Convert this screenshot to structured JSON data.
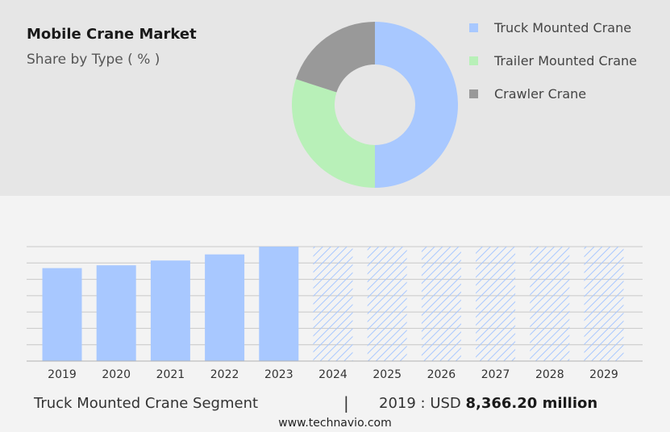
{
  "header": {
    "title": "Mobile Crane Market",
    "subtitle": "Share by Type ( % )"
  },
  "colors": {
    "truck": "#a8c8ff",
    "trailer": "#b8f0b8",
    "crawler": "#999999",
    "hatch": "#a8c8ff"
  },
  "chart_data": [
    {
      "type": "pie",
      "variant": "donut",
      "slices": [
        {
          "label": "Truck Mounted Crane",
          "value": 50
        },
        {
          "label": "Trailer Mounted Crane",
          "value": 30
        },
        {
          "label": "Crawler Crane",
          "value": 20
        }
      ],
      "legend_position": "right"
    },
    {
      "type": "bar",
      "categories": [
        "2019",
        "2020",
        "2021",
        "2022",
        "2023",
        "2024",
        "2025",
        "2026",
        "2027",
        "2028",
        "2029"
      ],
      "values": [
        8366.2,
        8620,
        9050,
        9600,
        10300,
        10300,
        10300,
        10300,
        10300,
        10300,
        10300
      ],
      "forecast_from": "2024",
      "ylim": [
        0,
        10300
      ],
      "grid": true
    }
  ],
  "footer": {
    "segment": "Truck Mounted Crane Segment",
    "separator": "|",
    "year_label": "2019 : USD ",
    "value": "8,366.20 million",
    "site": "www.technavio.com"
  }
}
